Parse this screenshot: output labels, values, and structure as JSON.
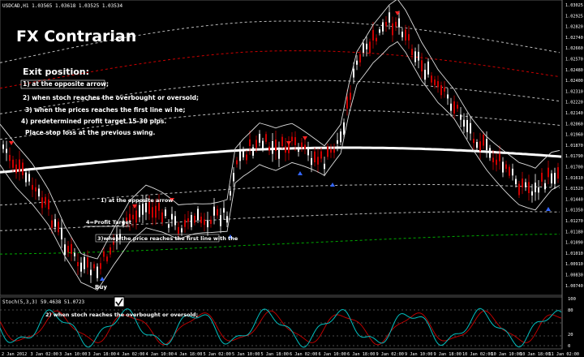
{
  "symbol_header": "USDCAD,H1 1.03565 1.03618 1.03525 1.03534",
  "title": "FX Contrarian",
  "exit_heading": "Exit position:",
  "exit_rules": [
    "1) at the opposite arrow;",
    "2) when stoch reaches the overbought or oversold;",
    "3) when the prices reaches the first line wi he;",
    "4) predetermined profit target 15-30 pips.",
    "Place stop loss at the previous swing."
  ],
  "annotations": {
    "opposite_arrow": "1) at the opposite arrow",
    "profit_target": "4=Profit Target",
    "first_line": "3)when the price reaches the first line with the",
    "buy": "Buy",
    "stoch_note": "2) when stoch reaches the overbought or oversold;"
  },
  "stoch_header": "Stoch(5,3,3) 59.4638 51.0723",
  "price_axis": [
    "1.03025",
    "1.02925",
    "1.02820",
    "1.02740",
    "1.02660",
    "1.02570",
    "1.02480",
    "1.02400",
    "1.02310",
    "1.02220",
    "1.02140",
    "1.02060",
    "1.01960",
    "1.01870",
    "1.01790",
    "1.01700",
    "1.01610",
    "1.01520",
    "1.01440",
    "1.01350",
    "1.01270",
    "1.01180",
    "1.01090",
    "1.01010",
    "1.00910",
    "1.00830",
    "1.00740"
  ],
  "stoch_axis": [
    "100",
    "80",
    "20",
    "0"
  ],
  "time_axis": [
    "2 Jan 2012",
    "3 Jan 02:00",
    "3 Jan 10:00",
    "3 Jan 18:00",
    "4 Jan 02:00",
    "4 Jan 10:00",
    "4 Jan 18:00",
    "5 Jan 02:00",
    "5 Jan 10:00",
    "5 Jan 18:00",
    "6 Jan 02:00",
    "6 Jan 10:00",
    "6 Jan 18:00",
    "9 Jan 02:00",
    "9 Jan 10:00",
    "9 Jan 18:00",
    "10 Jan 02:00",
    "10 Jan 10:00",
    "10 Jan 18:00",
    "11 Jan 02:00"
  ],
  "colors": {
    "background": "#000000",
    "bull_candle": "#ffffff",
    "bear_candle": "#cc0000",
    "ma_line": "#ffffff",
    "band_lines": "#bbbbbb",
    "red_band": "#cc0000",
    "green_band": "#00aa00",
    "stoch_main": "#00bfbf",
    "stoch_signal": "#cc0000",
    "up_arrow": "#3366ff",
    "down_arrow": "#ff2222"
  }
}
